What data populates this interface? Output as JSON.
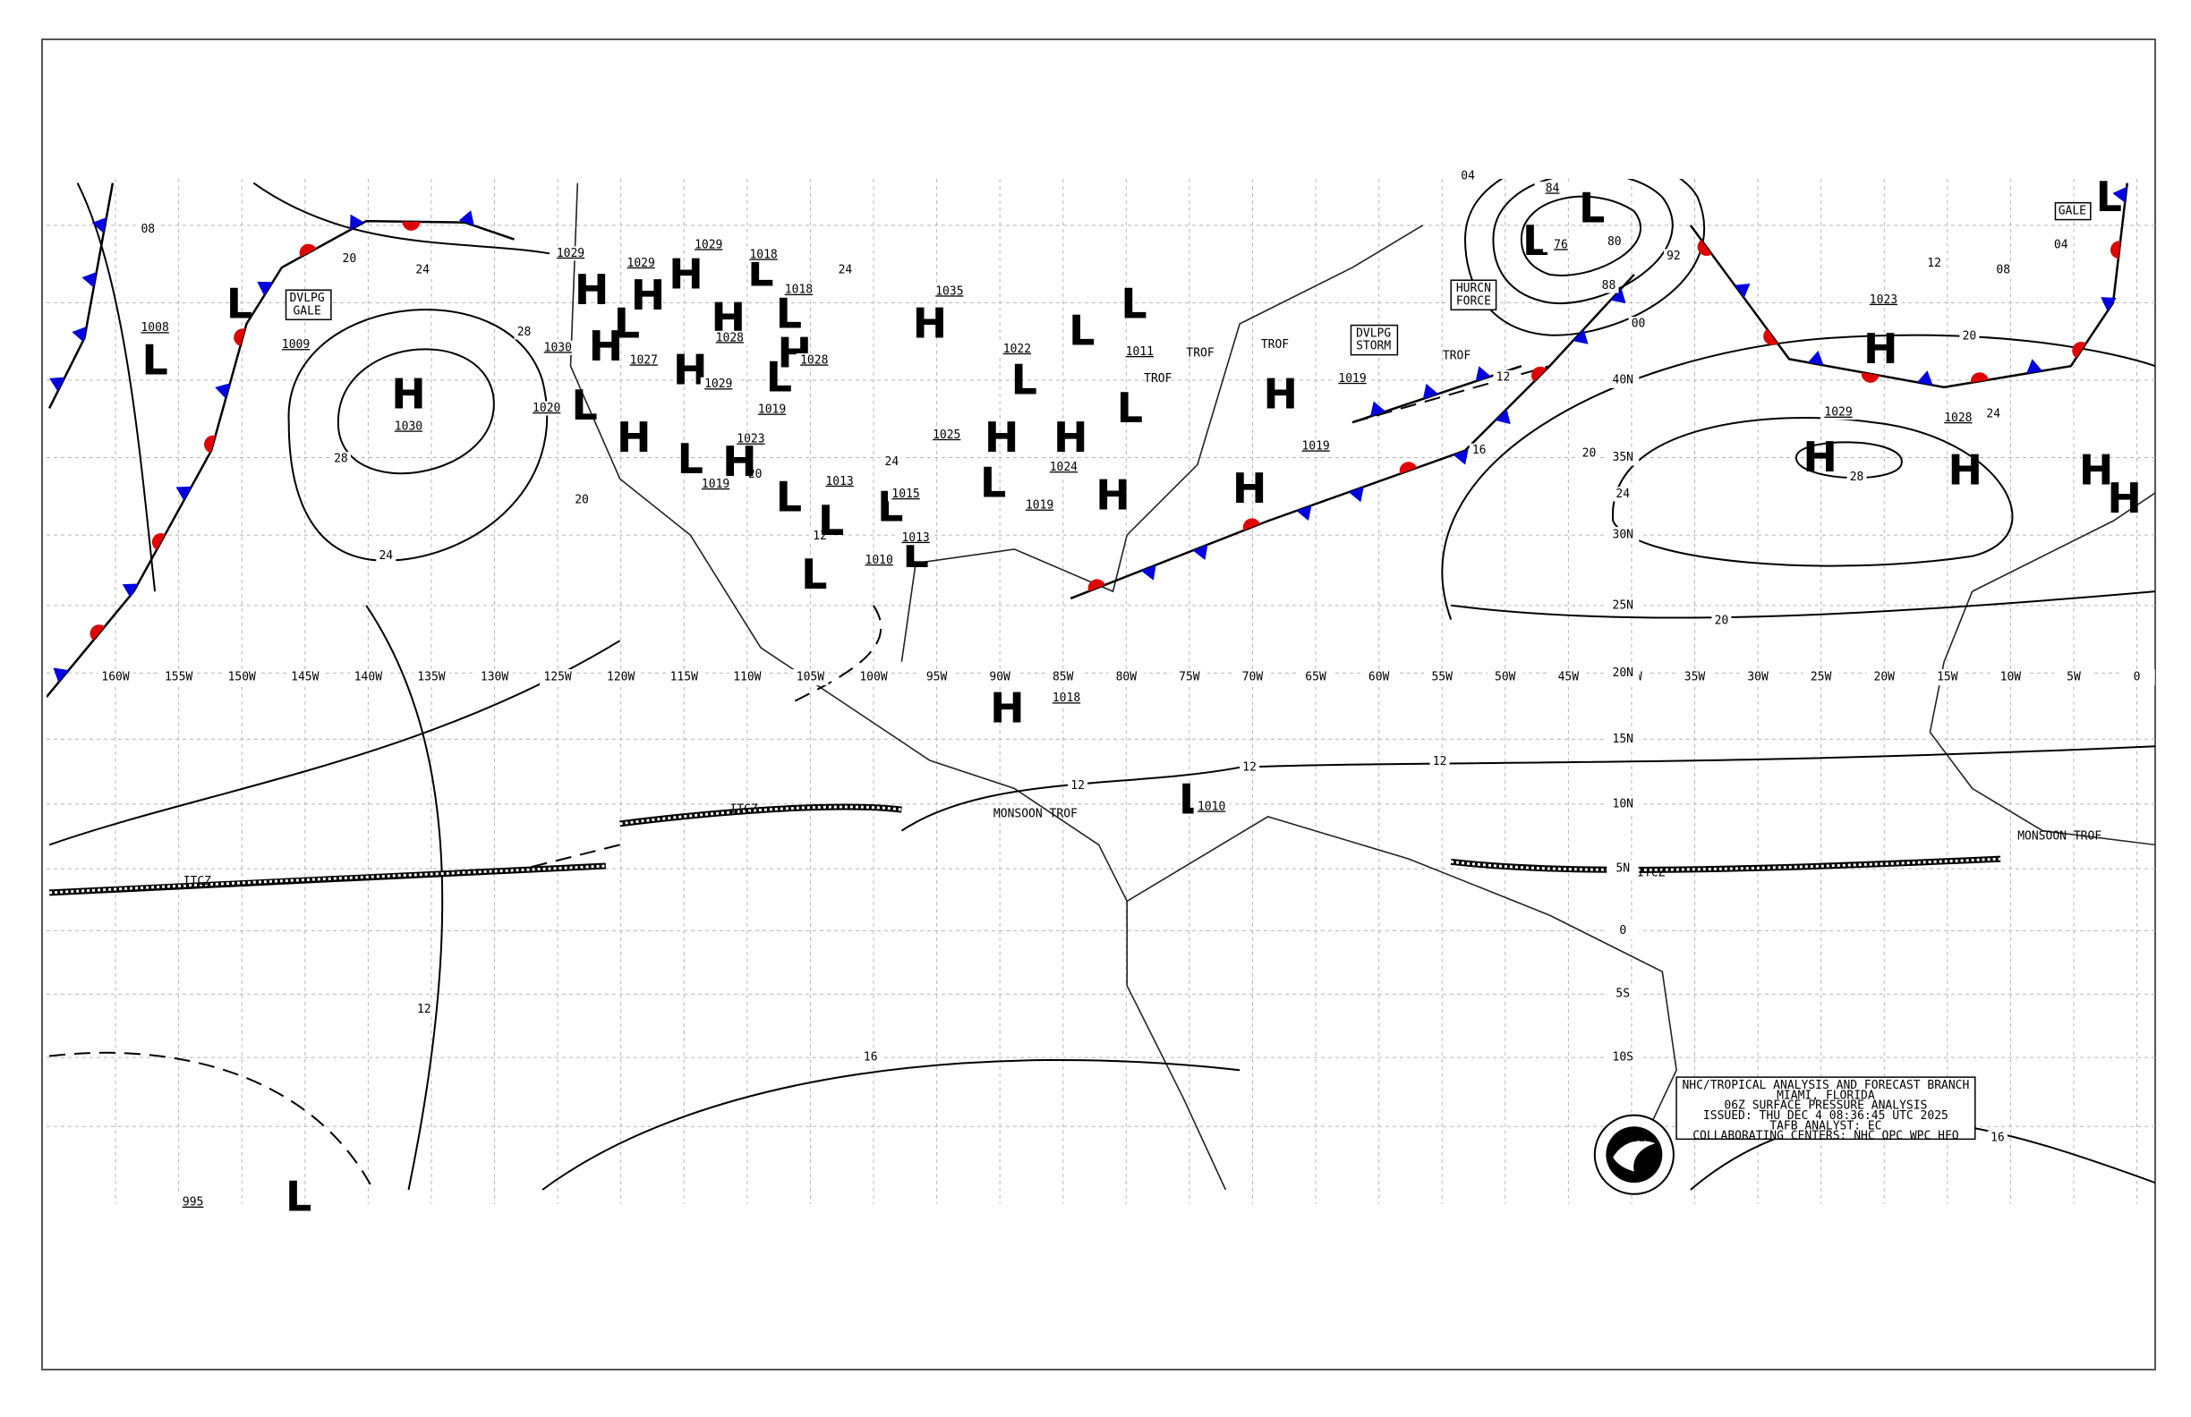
{
  "map": {
    "longitude_labels": [
      "160W",
      "155W",
      "150W",
      "145W",
      "140W",
      "135W",
      "130W",
      "125W",
      "120W",
      "115W",
      "110W",
      "105W",
      "100W",
      "95W",
      "90W",
      "85W",
      "80W",
      "75W",
      "70W",
      "65W",
      "60W",
      "55W",
      "50W",
      "45W",
      "40W",
      "35W",
      "30W",
      "25W",
      "20W",
      "15W",
      "10W",
      "5W",
      "0"
    ],
    "latitude_labels": [
      "40N",
      "35N",
      "30N",
      "25N",
      "20N",
      "15N",
      "10N",
      "5N",
      "0",
      "5S",
      "10S"
    ],
    "pressure_centers": [
      {
        "symbol": "H",
        "pressure": "1030"
      },
      {
        "symbol": "L",
        "pressure": "1008"
      },
      {
        "symbol": "L",
        "pressure": "1009"
      },
      {
        "symbol": "H",
        "pressure": "1029"
      },
      {
        "symbol": "H",
        "pressure": "1029"
      },
      {
        "symbol": "H",
        "pressure": "1029"
      },
      {
        "symbol": "H",
        "pressure": "1030"
      },
      {
        "symbol": "L",
        "pressure": "1027"
      },
      {
        "symbol": "H",
        "pressure": "1028"
      },
      {
        "symbol": "H",
        "pressure": "1029"
      },
      {
        "symbol": "L",
        "pressure": "1018"
      },
      {
        "symbol": "L",
        "pressure": "1018"
      },
      {
        "symbol": "H",
        "pressure": "1028"
      },
      {
        "symbol": "L",
        "pressure": "1019"
      },
      {
        "symbol": "L",
        "pressure": "1020"
      },
      {
        "symbol": "H"
      },
      {
        "symbol": "L",
        "pressure": "1023"
      },
      {
        "symbol": "H"
      },
      {
        "symbol": "L",
        "pressure": "1019"
      },
      {
        "symbol": "L",
        "pressure": "1013"
      },
      {
        "symbol": "L",
        "pressure": "1015"
      },
      {
        "symbol": "L",
        "pressure": "1010"
      },
      {
        "symbol": "L",
        "pressure": "1013"
      },
      {
        "symbol": "H",
        "pressure": "1035"
      },
      {
        "symbol": "H",
        "pressure": "1025"
      },
      {
        "symbol": "L"
      },
      {
        "symbol": "H",
        "pressure": "1024"
      },
      {
        "symbol": "H",
        "pressure": "1019"
      },
      {
        "symbol": "L",
        "pressure": "1022"
      },
      {
        "symbol": "L"
      },
      {
        "symbol": "L"
      },
      {
        "symbol": "L",
        "pressure": "1011"
      },
      {
        "symbol": "H",
        "pressure": "1019"
      },
      {
        "symbol": "H",
        "pressure": "1019"
      },
      {
        "symbol": "L",
        "pressure": "76"
      },
      {
        "symbol": "L",
        "pressure": "84"
      },
      {
        "symbol": "H",
        "pressure": "1023"
      },
      {
        "symbol": "H",
        "pressure": "1029"
      },
      {
        "symbol": "H",
        "pressure": "1028"
      },
      {
        "symbol": "H"
      },
      {
        "symbol": "H"
      },
      {
        "symbol": "L"
      },
      {
        "symbol": "H",
        "pressure": "1018"
      },
      {
        "symbol": "L",
        "pressure": "1010"
      },
      {
        "symbol": "L",
        "pressure": "995"
      }
    ],
    "isobar_labels": [
      "08",
      "20",
      "24",
      "28",
      "28",
      "24",
      "20",
      "24",
      "24",
      "20",
      "12",
      "04",
      "80",
      "92",
      "88",
      "00",
      "12",
      "16",
      "20",
      "24",
      "28",
      "20",
      "12",
      "08",
      "04",
      "24",
      "20",
      "12",
      "12",
      "12",
      "16",
      "12",
      "16"
    ],
    "annotations": [
      "DVLPG",
      "GALE",
      "HURCN",
      "FORCE",
      "DVLPG",
      "STORM",
      "GALE",
      "TROF",
      "TROF",
      "TROF",
      "TROF",
      "ITCZ",
      "ITCZ",
      "ITCZ",
      "MONSOON TROF",
      "MONSOON TROF"
    ],
    "info_box": {
      "lines": [
        "NHC/TROPICAL ANALYSIS AND FORECAST BRANCH",
        "MIAMI, FLORIDA",
        "06Z SURFACE PRESSURE ANALYSIS",
        "ISSUED: THU DEC 4 08:36:45 UTC 2025",
        "TAFB ANALYST: EC",
        "COLLABORATING CENTERS: NHC OPC WPC HFO"
      ]
    },
    "logo": "NOAA"
  }
}
